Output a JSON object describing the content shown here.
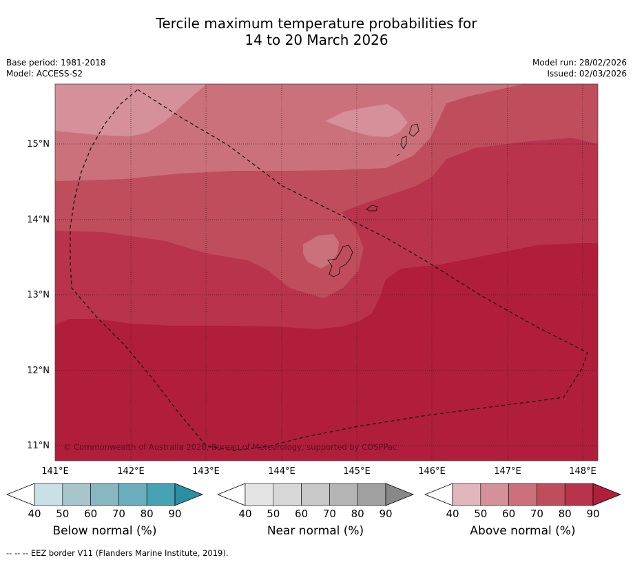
{
  "title": {
    "line1": "Tercile maximum temperature probabilities for",
    "line2": "14 to 20 March 2026"
  },
  "meta": {
    "base_period": "Base period: 1981-2018",
    "model": "Model: ACCESS-S2",
    "model_run": "Model run: 28/02/2026",
    "issued": "Issued: 02/03/2026"
  },
  "map": {
    "lat_labels": [
      "15°N",
      "14°N",
      "13°N",
      "12°N",
      "11°N"
    ],
    "lon_labels": [
      "141°E",
      "142°E",
      "143°E",
      "144°E",
      "145°E",
      "146°E",
      "147°E",
      "148°E"
    ],
    "copyright": "© Commonwealth of Australia 2026, Bureau of Meteorology, supported by COSPPac",
    "category_shown": "Above normal",
    "color_level_note": "probability bands 50-60, 60-70, 70-80, 80-90"
  },
  "colorbars": [
    {
      "name": "below",
      "label": "Below normal (%)",
      "ticks": [
        "40",
        "50",
        "60",
        "70",
        "80",
        "90"
      ],
      "colors": [
        "#ffffff",
        "#c8e0e6",
        "#a7c6cb",
        "#88b6c1",
        "#6aaebd",
        "#47a2b4",
        "#2b8ea3"
      ]
    },
    {
      "name": "near",
      "label": "Near normal (%)",
      "ticks": [
        "40",
        "50",
        "60",
        "70",
        "80",
        "90"
      ],
      "colors": [
        "#ffffff",
        "#e4e4e4",
        "#d7d7d7",
        "#c8c8c8",
        "#b4b4b4",
        "#a0a0a0",
        "#888888"
      ]
    },
    {
      "name": "above",
      "label": "Above normal (%)",
      "ticks": [
        "40",
        "50",
        "60",
        "70",
        "80",
        "90"
      ],
      "colors": [
        "#ffffff",
        "#e1b6bd",
        "#d5909a",
        "#cb717b",
        "#c04d5c",
        "#b9334d",
        "#b01e3b"
      ]
    }
  ],
  "footer": "--  --  -- EEZ border V11 (Flanders Marine Institute, 2019)."
}
